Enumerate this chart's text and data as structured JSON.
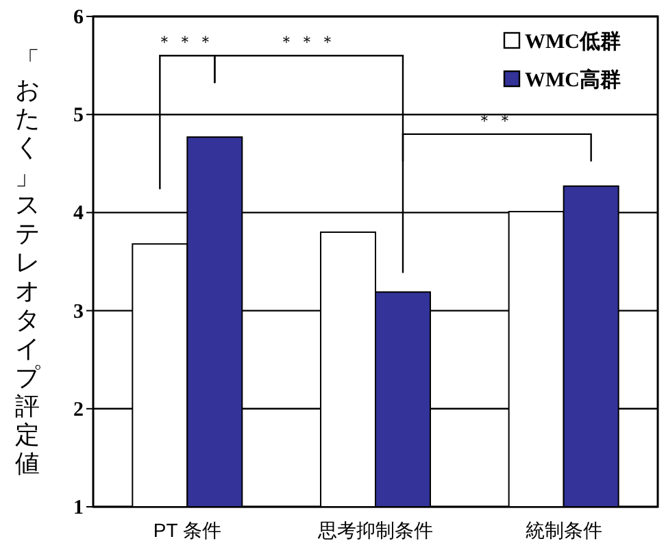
{
  "chart_data": {
    "type": "bar",
    "ylabel": "「おたく」ステレオタイプ評定値",
    "categories": [
      "PT 条件",
      "思考抑制条件",
      "統制条件"
    ],
    "series": [
      {
        "name": "WMC低群",
        "color": "#ffffff",
        "values": [
          3.68,
          3.8,
          4.01
        ]
      },
      {
        "name": "WMC高群",
        "color": "#333399",
        "values": [
          4.77,
          3.19,
          4.27
        ]
      }
    ],
    "ylim": [
      1,
      6
    ],
    "yticks": [
      1,
      2,
      3,
      4,
      5,
      6
    ],
    "grid": "y",
    "legend": "top right",
    "annotations": [
      "＊＊＊",
      "＊＊＊",
      "＊＊"
    ]
  }
}
